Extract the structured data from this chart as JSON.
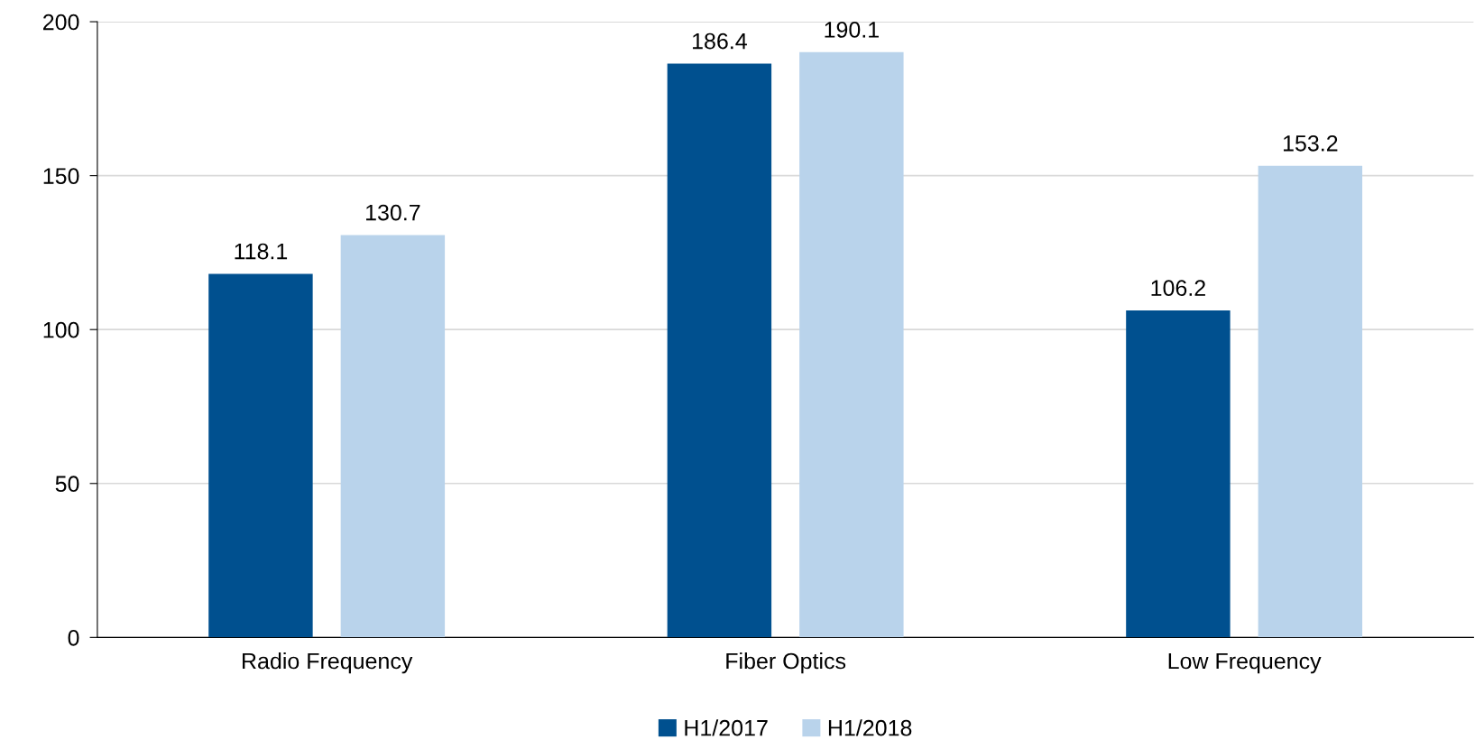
{
  "chart_data": {
    "type": "bar",
    "categories": [
      "Radio Frequency",
      "Fiber Optics",
      "Low Frequency"
    ],
    "series": [
      {
        "name": "H1/2017",
        "color": "#00508f",
        "values": [
          118.1,
          186.4,
          106.2
        ]
      },
      {
        "name": "H1/2018",
        "color": "#b9d3eb",
        "values": [
          130.7,
          190.1,
          153.2
        ]
      }
    ],
    "ylim": [
      0,
      200
    ],
    "yticks": [
      0,
      50,
      100,
      150,
      200
    ],
    "grid": "y",
    "legend": "bottom",
    "data_labels": true
  }
}
